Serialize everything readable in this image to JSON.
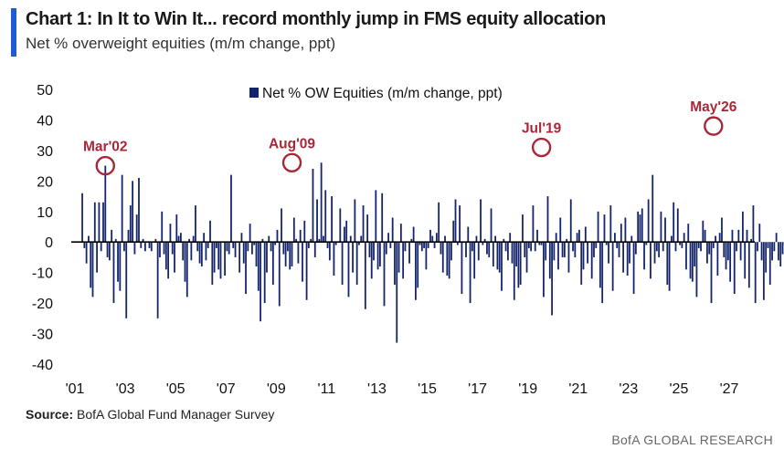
{
  "header": {
    "title": "Chart 1: In It to Win It... record monthly jump in FMS equity allocation",
    "subtitle": "Net % overweight equities (m/m change, ppt)"
  },
  "source": {
    "label": "Source:",
    "text": "BofA Global Fund Manager Survey"
  },
  "footer": {
    "text": "BofA GLOBAL RESEARCH"
  },
  "colors": {
    "bar": "#14246b",
    "annotation": "#a8283a",
    "accent": "#1f5bd6",
    "zero_line": "#000000"
  },
  "chart_data": {
    "type": "bar",
    "title": "Chart 1: In It to Win It... record monthly jump in FMS equity allocation",
    "subtitle": "Net % overweight equities (m/m change, ppt)",
    "xlabel": "",
    "ylabel": "",
    "ylim": [
      -40,
      50
    ],
    "yticks": [
      50,
      40,
      30,
      20,
      10,
      0,
      -10,
      -20,
      -30,
      -40
    ],
    "xlim": [
      2001,
      2027
    ],
    "xticks": [
      {
        "value": 2001,
        "label": "'01"
      },
      {
        "value": 2003,
        "label": "'03"
      },
      {
        "value": 2005,
        "label": "'05"
      },
      {
        "value": 2007,
        "label": "'07"
      },
      {
        "value": 2009,
        "label": "'09"
      },
      {
        "value": 2011,
        "label": "'11"
      },
      {
        "value": 2013,
        "label": "'13"
      },
      {
        "value": 2015,
        "label": "'15"
      },
      {
        "value": 2017,
        "label": "'17"
      },
      {
        "value": 2019,
        "label": "'19"
      },
      {
        "value": 2021,
        "label": "'21"
      },
      {
        "value": 2023,
        "label": "'23"
      },
      {
        "value": 2025,
        "label": "'25"
      },
      {
        "value": 2027,
        "label": "'27"
      }
    ],
    "legend": {
      "label": "Net % OW Equities (m/m change, ppt)",
      "position": "top-center"
    },
    "grid": false,
    "start": "2001-04",
    "series": [
      {
        "name": "Net % OW Equities (m/m change, ppt)",
        "values": [
          16,
          -2,
          -7,
          2,
          -15,
          -18,
          13,
          -10,
          13,
          -3,
          13,
          25,
          -5,
          -6,
          4,
          -20,
          1,
          -13,
          -16,
          22,
          -3,
          -25,
          4,
          12,
          20,
          -4,
          9,
          21,
          -2,
          1,
          -3,
          0,
          -2,
          -3,
          0,
          1,
          -25,
          -5,
          10,
          -4,
          -9,
          -12,
          6,
          -4,
          -10,
          9,
          2,
          3,
          -6,
          -13,
          -18,
          1,
          -6,
          2,
          12,
          -3,
          -7,
          -8,
          3,
          -6,
          -2,
          7,
          -14,
          -10,
          -2,
          -9,
          -12,
          0,
          -11,
          -3,
          -4,
          22,
          -2,
          -5,
          0,
          -10,
          3,
          -7,
          -17,
          -3,
          6,
          -4,
          -1,
          -8,
          -16,
          -26,
          1,
          -20,
          -10,
          2,
          -3,
          -14,
          -1,
          4,
          -21,
          11,
          -4,
          -8,
          -3,
          -9,
          -8,
          8,
          1,
          -7,
          4,
          -13,
          7,
          -19,
          -2,
          1,
          24,
          -5,
          14,
          1,
          26,
          2,
          17,
          -2,
          -6,
          15,
          -11,
          -1,
          0,
          11,
          -14,
          5,
          7,
          -18,
          2,
          -10,
          14,
          -14,
          -1,
          2,
          12,
          -22,
          9,
          -5,
          -12,
          -6,
          17,
          -9,
          -8,
          16,
          -21,
          -4,
          3,
          -2,
          8,
          -14,
          -33,
          -10,
          6,
          -12,
          -3,
          0,
          -7,
          1,
          5,
          -19,
          -15,
          -1,
          -3,
          -2,
          -9,
          -2,
          4,
          2,
          -2,
          3,
          13,
          -4,
          -10,
          2,
          -11,
          -12,
          -6,
          7,
          14,
          -1,
          12,
          -17,
          0,
          -5,
          5,
          -20,
          -3,
          -12,
          2,
          -6,
          14,
          -1,
          1,
          -4,
          -5,
          11,
          -8,
          2,
          -9,
          -10,
          -16,
          1,
          -3,
          -6,
          3,
          -7,
          -19,
          -8,
          -15,
          -14,
          9,
          -5,
          -10,
          -2,
          -3,
          12,
          -3,
          4,
          -1,
          -1,
          -18,
          -6,
          15,
          -12,
          -24,
          -6,
          3,
          -9,
          8,
          -5,
          -5,
          1,
          -10,
          14,
          -3,
          -5,
          3,
          4,
          -14,
          -9,
          5,
          -7,
          0,
          -12,
          -5,
          -2,
          10,
          -15,
          -20,
          9,
          -1,
          -7,
          12,
          -16,
          3,
          -2,
          -5,
          6,
          -10,
          8,
          -11,
          -7,
          2,
          -17,
          -4,
          10,
          9,
          11,
          -9,
          -1,
          14,
          -12,
          22,
          -7,
          -3,
          -5,
          10,
          -3,
          8,
          -14,
          -16,
          2,
          13,
          -3,
          11,
          -1,
          -2,
          3,
          -9,
          6,
          -12,
          -13,
          -8,
          -18,
          -2,
          -3,
          7,
          4,
          -7,
          -4,
          -20,
          -2,
          2,
          -11,
          3,
          8,
          -5,
          -9,
          -6,
          -13,
          4,
          -17,
          -3,
          4,
          -6,
          10,
          -12,
          4,
          -15,
          1,
          12,
          -20,
          -3,
          6,
          -6,
          -19,
          -10,
          -2,
          -14,
          -6,
          -3,
          3,
          -6,
          -8,
          -4,
          -1,
          -32,
          31,
          -23,
          -1,
          9,
          -17,
          -2,
          20,
          -3,
          -13,
          -26,
          -3,
          -30,
          1,
          4,
          -34,
          3,
          -6,
          -12,
          10,
          -10,
          -8,
          0,
          -5,
          -18,
          23,
          -5,
          -16,
          -1,
          6,
          -13,
          -11,
          12,
          -8,
          8,
          -4,
          -3,
          0,
          9,
          -9,
          5,
          -16,
          -10,
          0,
          -6,
          2,
          -16,
          -2,
          -13,
          -9,
          -12,
          -20,
          -3,
          -8,
          -19,
          2,
          -22,
          8,
          3,
          -13,
          -24,
          -27,
          9,
          -23,
          -17,
          -3,
          -10,
          -25,
          15,
          -28,
          -16,
          -7,
          -22,
          -9,
          -14,
          -6,
          -2,
          -20,
          7,
          -22,
          -8,
          -5,
          13,
          1,
          -5,
          -8,
          9,
          -11,
          1,
          -3,
          6,
          4,
          -5,
          -6,
          -2,
          12,
          -1,
          5,
          -8,
          -2,
          -7,
          10,
          9,
          6,
          -3,
          -14,
          -1,
          5,
          -6,
          -19,
          20,
          -9,
          0,
          -12,
          -25,
          13,
          -2,
          -6,
          8,
          -4,
          -5,
          -18,
          -28,
          -7,
          -5,
          1,
          13,
          -9,
          5,
          -3,
          -4,
          -12,
          6,
          14,
          -6,
          -22,
          2,
          -4,
          -3,
          -2,
          8,
          -6,
          -10,
          0,
          -1,
          -3,
          -1,
          2,
          -2,
          7,
          5,
          -4,
          -6,
          -3,
          0,
          1,
          -2,
          -2,
          6,
          -3,
          -1,
          -11,
          -25,
          38
        ],
        "color": "#14246b"
      }
    ],
    "annotations": [
      {
        "label": "Mar'02",
        "date": "2002-03",
        "value": 25
      },
      {
        "label": "Aug'09",
        "date": "2009-08",
        "value": 26
      },
      {
        "label": "Jul'19",
        "date": "2019-07",
        "value": 31
      },
      {
        "label": "May'26",
        "date": "2026-05",
        "value": 38
      }
    ]
  }
}
